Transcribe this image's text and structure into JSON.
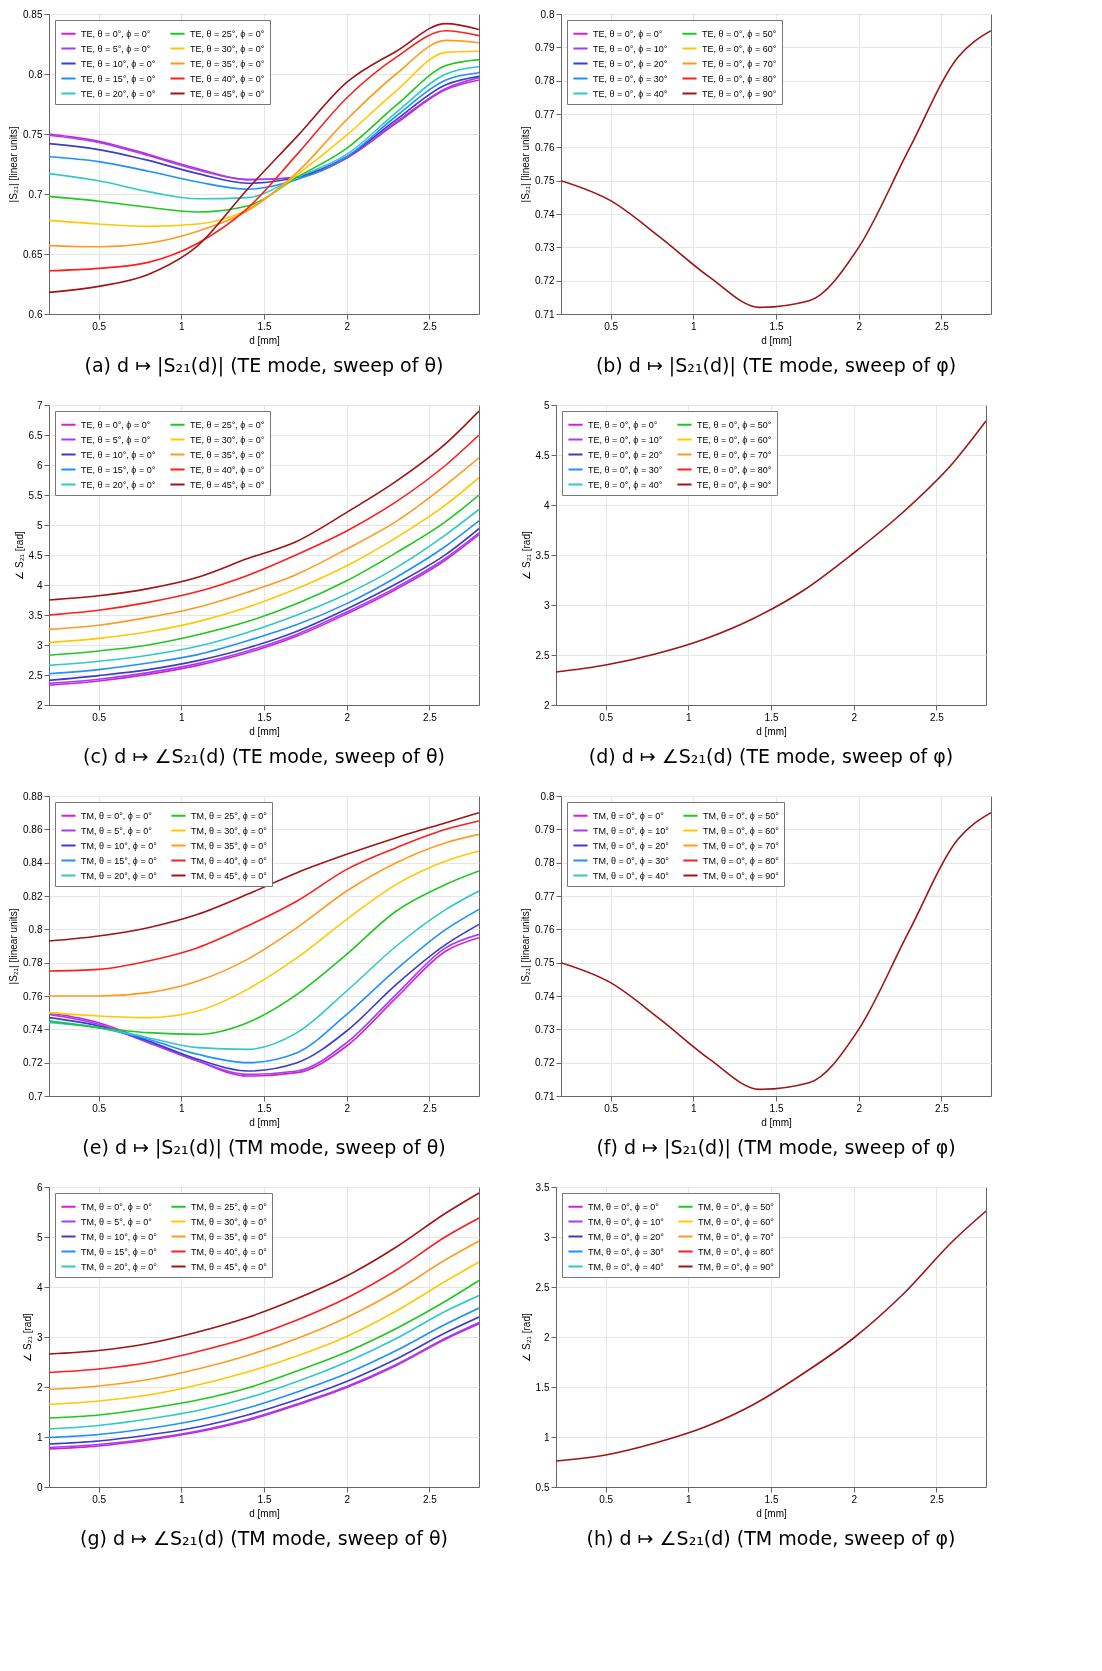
{
  "chart_data": [
    {
      "type": "line",
      "title": "(a) d ↦ |S₂₁(d)| (TE mode, sweep of θ)",
      "xlabel": "d [mm]",
      "ylabel": "|S₂₁| [linear units]",
      "x": [
        0.2,
        0.5,
        0.8,
        1.1,
        1.4,
        1.7,
        2.0,
        2.3,
        2.6,
        2.8
      ],
      "xlim": [
        0.2,
        2.8
      ],
      "xticks": [
        0.5,
        1,
        1.5,
        2,
        2.5
      ],
      "ylim": [
        0.6,
        0.85
      ],
      "yticks": [
        0.6,
        0.65,
        0.7,
        0.75,
        0.8,
        0.85
      ],
      "grid": true,
      "legend": "top left",
      "line_style": "solid",
      "series": [
        {
          "name": "TE, θ = 0°, ϕ = 0°",
          "color": "#d61ed6",
          "values": [
            0.75,
            0.744,
            0.733,
            0.721,
            0.712,
            0.714,
            0.73,
            0.759,
            0.787,
            0.795
          ]
        },
        {
          "name": "TE, θ = 5°, ϕ = 0°",
          "color": "#a040f0",
          "values": [
            0.749,
            0.743,
            0.732,
            0.72,
            0.712,
            0.714,
            0.73,
            0.76,
            0.788,
            0.797
          ]
        },
        {
          "name": "TE, θ = 10°, ϕ = 0°",
          "color": "#3c3cc8",
          "values": [
            0.742,
            0.737,
            0.728,
            0.717,
            0.709,
            0.714,
            0.731,
            0.762,
            0.791,
            0.798
          ]
        },
        {
          "name": "TE, θ = 15°, ϕ = 0°",
          "color": "#1e90ff",
          "values": [
            0.731,
            0.727,
            0.719,
            0.71,
            0.704,
            0.712,
            0.731,
            0.765,
            0.795,
            0.801
          ]
        },
        {
          "name": "TE, θ = 20°, ϕ = 0°",
          "color": "#30c8c8",
          "values": [
            0.717,
            0.711,
            0.702,
            0.696,
            0.697,
            0.714,
            0.733,
            0.768,
            0.8,
            0.806
          ]
        },
        {
          "name": "TE, θ = 25°, ϕ = 0°",
          "color": "#1ec81e",
          "values": [
            0.698,
            0.694,
            0.689,
            0.685,
            0.69,
            0.714,
            0.738,
            0.774,
            0.807,
            0.812
          ]
        },
        {
          "name": "TE, θ = 30°, ϕ = 0°",
          "color": "#ffc800",
          "values": [
            0.678,
            0.675,
            0.673,
            0.675,
            0.687,
            0.716,
            0.749,
            0.786,
            0.818,
            0.819
          ]
        },
        {
          "name": "TE, θ = 35°, ϕ = 0°",
          "color": "#ff9b1e",
          "values": [
            0.657,
            0.656,
            0.659,
            0.669,
            0.686,
            0.718,
            0.762,
            0.8,
            0.828,
            0.826
          ]
        },
        {
          "name": "TE, θ = 40°, ϕ = 0°",
          "color": "#ff1e1e",
          "values": [
            0.636,
            0.638,
            0.643,
            0.659,
            0.688,
            0.733,
            0.78,
            0.814,
            0.836,
            0.832
          ]
        },
        {
          "name": "TE, θ = 45°, ϕ = 0°",
          "color": "#a01414",
          "values": [
            0.618,
            0.623,
            0.633,
            0.657,
            0.704,
            0.748,
            0.793,
            0.819,
            0.842,
            0.837
          ]
        }
      ]
    },
    {
      "type": "line",
      "title": "(b) d ↦ |S₂₁(d)| (TE mode, sweep of φ)",
      "xlabel": "d [mm]",
      "ylabel": "|S₂₁| [linear units]",
      "x": [
        0.2,
        0.5,
        0.8,
        1.1,
        1.4,
        1.7,
        2.0,
        2.3,
        2.6,
        2.8
      ],
      "xlim": [
        0.2,
        2.8
      ],
      "xticks": [
        0.5,
        1,
        1.5,
        2,
        2.5
      ],
      "ylim": [
        0.71,
        0.8
      ],
      "yticks": [
        0.71,
        0.72,
        0.73,
        0.74,
        0.75,
        0.76,
        0.77,
        0.78,
        0.79,
        0.8
      ],
      "grid": true,
      "legend": "top left",
      "line_style": "solid",
      "series": [
        {
          "name": "TE, θ = 0°, ϕ = 0°",
          "color": "#d61ed6",
          "values": [
            null,
            null,
            null,
            null,
            null,
            null,
            null,
            null,
            null,
            null
          ]
        },
        {
          "name": "TE, θ = 0°, ϕ = 10°",
          "color": "#a040f0",
          "values": [
            null,
            null,
            null,
            null,
            null,
            null,
            null,
            null,
            null,
            null
          ]
        },
        {
          "name": "TE, θ = 0°, ϕ = 20°",
          "color": "#3c3cc8",
          "values": [
            null,
            null,
            null,
            null,
            null,
            null,
            null,
            null,
            null,
            null
          ]
        },
        {
          "name": "TE, θ = 0°, ϕ = 30°",
          "color": "#1e90ff",
          "values": [
            null,
            null,
            null,
            null,
            null,
            null,
            null,
            null,
            null,
            null
          ]
        },
        {
          "name": "TE, θ = 0°, ϕ = 40°",
          "color": "#30c8c8",
          "values": [
            null,
            null,
            null,
            null,
            null,
            null,
            null,
            null,
            null,
            null
          ]
        },
        {
          "name": "TE, θ = 0°, ϕ = 50°",
          "color": "#1ec81e",
          "values": [
            null,
            null,
            null,
            null,
            null,
            null,
            null,
            null,
            null,
            null
          ]
        },
        {
          "name": "TE, θ = 0°, ϕ = 60°",
          "color": "#ffc800",
          "values": [
            null,
            null,
            null,
            null,
            null,
            null,
            null,
            null,
            null,
            null
          ]
        },
        {
          "name": "TE, θ = 0°, ϕ = 70°",
          "color": "#ff9b1e",
          "values": [
            null,
            null,
            null,
            null,
            null,
            null,
            null,
            null,
            null,
            null
          ]
        },
        {
          "name": "TE, θ = 0°, ϕ = 80°",
          "color": "#ff1e1e",
          "values": [
            null,
            null,
            null,
            null,
            null,
            null,
            null,
            null,
            null,
            null
          ]
        },
        {
          "name": "TE, θ = 0°, ϕ = 90°",
          "color": "#a01414",
          "values": [
            0.75,
            0.744,
            0.733,
            0.721,
            0.712,
            0.714,
            0.73,
            0.759,
            0.787,
            0.795
          ]
        }
      ]
    },
    {
      "type": "line",
      "title": "(c) d ↦ ∠S₂₁(d) (TE mode, sweep of θ)",
      "xlabel": "d [mm]",
      "ylabel": "∠ S₂₁ [rad]",
      "x": [
        0.2,
        0.5,
        0.8,
        1.1,
        1.4,
        1.7,
        2.0,
        2.3,
        2.6,
        2.8
      ],
      "xlim": [
        0.2,
        2.8
      ],
      "xticks": [
        0.5,
        1,
        1.5,
        2,
        2.5
      ],
      "ylim": [
        2,
        7
      ],
      "yticks": [
        2,
        2.5,
        3,
        3.5,
        4,
        4.5,
        5,
        5.5,
        6,
        6.5,
        7
      ],
      "grid": true,
      "legend": "top left",
      "line_style": "solid",
      "series": [
        {
          "name": "TE, θ = 0°, ϕ = 0°",
          "color": "#d61ed6",
          "values": [
            2.33,
            2.4,
            2.51,
            2.66,
            2.87,
            3.15,
            3.52,
            3.93,
            4.42,
            4.84
          ]
        },
        {
          "name": "TE, θ = 5°, ϕ = 0°",
          "color": "#a040f0",
          "values": [
            2.36,
            2.43,
            2.54,
            2.69,
            2.9,
            3.18,
            3.55,
            3.96,
            4.45,
            4.87
          ]
        },
        {
          "name": "TE, θ = 10°, ϕ = 0°",
          "color": "#3c3cc8",
          "values": [
            2.41,
            2.49,
            2.59,
            2.74,
            2.95,
            3.23,
            3.6,
            4.02,
            4.51,
            4.94
          ]
        },
        {
          "name": "TE, θ = 15°, ϕ = 0°",
          "color": "#1e90ff",
          "values": [
            2.52,
            2.59,
            2.7,
            2.84,
            3.07,
            3.34,
            3.69,
            4.13,
            4.65,
            5.07
          ]
        },
        {
          "name": "TE, θ = 20°, ϕ = 0°",
          "color": "#30c8c8",
          "values": [
            2.66,
            2.73,
            2.83,
            2.98,
            3.21,
            3.5,
            3.85,
            4.29,
            4.84,
            5.26
          ]
        },
        {
          "name": "TE, θ = 25°, ϕ = 0°",
          "color": "#1ec81e",
          "values": [
            2.83,
            2.9,
            3.0,
            3.17,
            3.39,
            3.69,
            4.07,
            4.54,
            5.06,
            5.5
          ]
        },
        {
          "name": "TE, θ = 30°, ϕ = 0°",
          "color": "#ffc800",
          "values": [
            3.04,
            3.11,
            3.22,
            3.39,
            3.63,
            3.94,
            4.32,
            4.79,
            5.34,
            5.79
          ]
        },
        {
          "name": "TE, θ = 35°, ϕ = 0°",
          "color": "#ff9b1e",
          "values": [
            3.26,
            3.33,
            3.46,
            3.63,
            3.88,
            4.18,
            4.6,
            5.06,
            5.67,
            6.12
          ]
        },
        {
          "name": "TE, θ = 40°, ϕ = 0°",
          "color": "#ff1e1e",
          "values": [
            3.5,
            3.58,
            3.71,
            3.89,
            4.16,
            4.51,
            4.9,
            5.39,
            6.0,
            6.5
          ]
        },
        {
          "name": "TE, θ = 45°, ϕ = 0°",
          "color": "#a01414",
          "values": [
            3.75,
            3.82,
            3.94,
            4.13,
            4.44,
            4.73,
            5.21,
            5.73,
            6.36,
            6.9
          ]
        }
      ]
    },
    {
      "type": "line",
      "title": "(d) d ↦ ∠S₂₁(d) (TE mode, sweep of φ)",
      "xlabel": "d [mm]",
      "ylabel": "∠ S₂₁ [rad]",
      "x": [
        0.2,
        0.5,
        0.8,
        1.1,
        1.4,
        1.7,
        2.0,
        2.3,
        2.6,
        2.8
      ],
      "xlim": [
        0.2,
        2.8
      ],
      "xticks": [
        0.5,
        1,
        1.5,
        2,
        2.5
      ],
      "ylim": [
        2,
        5
      ],
      "yticks": [
        2,
        2.5,
        3,
        3.5,
        4,
        4.5,
        5
      ],
      "grid": true,
      "legend": "top left",
      "line_style": "solid",
      "series": [
        {
          "name": "TE, θ = 0°, ϕ = 0°",
          "color": "#d61ed6",
          "values": [
            null,
            null,
            null,
            null,
            null,
            null,
            null,
            null,
            null,
            null
          ]
        },
        {
          "name": "TE, θ = 0°, ϕ = 10°",
          "color": "#a040f0",
          "values": [
            null,
            null,
            null,
            null,
            null,
            null,
            null,
            null,
            null,
            null
          ]
        },
        {
          "name": "TE, θ = 0°, ϕ = 20°",
          "color": "#3c3cc8",
          "values": [
            null,
            null,
            null,
            null,
            null,
            null,
            null,
            null,
            null,
            null
          ]
        },
        {
          "name": "TE, θ = 0°, ϕ = 30°",
          "color": "#1e90ff",
          "values": [
            null,
            null,
            null,
            null,
            null,
            null,
            null,
            null,
            null,
            null
          ]
        },
        {
          "name": "TE, θ = 0°, ϕ = 40°",
          "color": "#30c8c8",
          "values": [
            null,
            null,
            null,
            null,
            null,
            null,
            null,
            null,
            null,
            null
          ]
        },
        {
          "name": "TE, θ = 0°, ϕ = 50°",
          "color": "#1ec81e",
          "values": [
            null,
            null,
            null,
            null,
            null,
            null,
            null,
            null,
            null,
            null
          ]
        },
        {
          "name": "TE, θ = 0°, ϕ = 60°",
          "color": "#ffc800",
          "values": [
            null,
            null,
            null,
            null,
            null,
            null,
            null,
            null,
            null,
            null
          ]
        },
        {
          "name": "TE, θ = 0°, ϕ = 70°",
          "color": "#ff9b1e",
          "values": [
            null,
            null,
            null,
            null,
            null,
            null,
            null,
            null,
            null,
            null
          ]
        },
        {
          "name": "TE, θ = 0°, ϕ = 80°",
          "color": "#ff1e1e",
          "values": [
            null,
            null,
            null,
            null,
            null,
            null,
            null,
            null,
            null,
            null
          ]
        },
        {
          "name": "TE, θ = 0°, ϕ = 90°",
          "color": "#a01414",
          "values": [
            2.33,
            2.4,
            2.51,
            2.66,
            2.87,
            3.15,
            3.52,
            3.93,
            4.42,
            4.84
          ]
        }
      ]
    },
    {
      "type": "line",
      "title": "(e) d ↦ |S₂₁(d)| (TM mode, sweep of θ)",
      "xlabel": "d [mm]",
      "ylabel": "|S₂₁| [linear units]",
      "x": [
        0.2,
        0.5,
        0.8,
        1.1,
        1.4,
        1.7,
        2.0,
        2.3,
        2.6,
        2.8
      ],
      "xlim": [
        0.2,
        2.8
      ],
      "xticks": [
        0.5,
        1,
        1.5,
        2,
        2.5
      ],
      "ylim": [
        0.7,
        0.88
      ],
      "yticks": [
        0.7,
        0.72,
        0.74,
        0.76,
        0.78,
        0.8,
        0.82,
        0.84,
        0.86,
        0.88
      ],
      "grid": true,
      "legend": "top left",
      "line_style": "solid",
      "series": [
        {
          "name": "TM, θ = 0°, ϕ = 0°",
          "color": "#d61ed6",
          "values": [
            0.75,
            0.744,
            0.733,
            0.721,
            0.712,
            0.714,
            0.73,
            0.759,
            0.787,
            0.795
          ]
        },
        {
          "name": "TM, θ = 5°, ϕ = 0°",
          "color": "#a040f0",
          "values": [
            0.749,
            0.743,
            0.732,
            0.721,
            0.713,
            0.715,
            0.732,
            0.761,
            0.789,
            0.797
          ]
        },
        {
          "name": "TM, θ = 10°, ϕ = 0°",
          "color": "#3c3cc8",
          "values": [
            0.747,
            0.742,
            0.733,
            0.722,
            0.715,
            0.72,
            0.739,
            0.767,
            0.791,
            0.803
          ]
        },
        {
          "name": "TM, θ = 15°, ϕ = 0°",
          "color": "#1e90ff",
          "values": [
            0.745,
            0.741,
            0.734,
            0.725,
            0.72,
            0.726,
            0.749,
            0.776,
            0.8,
            0.812
          ]
        },
        {
          "name": "TM, θ = 20°, ϕ = 0°",
          "color": "#30c8c8",
          "values": [
            0.744,
            0.741,
            0.735,
            0.729,
            0.728,
            0.738,
            0.763,
            0.79,
            0.812,
            0.823
          ]
        },
        {
          "name": "TM, θ = 25°, ϕ = 0°",
          "color": "#1ec81e",
          "values": [
            0.745,
            0.741,
            0.738,
            0.737,
            0.744,
            0.761,
            0.785,
            0.811,
            0.827,
            0.835
          ]
        },
        {
          "name": "TM, θ = 30°, ϕ = 0°",
          "color": "#ffc800",
          "values": [
            0.75,
            0.748,
            0.747,
            0.751,
            0.764,
            0.783,
            0.806,
            0.827,
            0.841,
            0.847
          ]
        },
        {
          "name": "TM, θ = 35°, ϕ = 0°",
          "color": "#ff9b1e",
          "values": [
            0.76,
            0.76,
            0.762,
            0.769,
            0.782,
            0.801,
            0.823,
            0.84,
            0.852,
            0.857
          ]
        },
        {
          "name": "TM, θ = 40°, ϕ = 0°",
          "color": "#ff1e1e",
          "values": [
            0.775,
            0.776,
            0.781,
            0.789,
            0.802,
            0.817,
            0.836,
            0.849,
            0.86,
            0.865
          ]
        },
        {
          "name": "TM, θ = 45°, ϕ = 0°",
          "color": "#a01414",
          "values": [
            0.793,
            0.796,
            0.801,
            0.809,
            0.821,
            0.834,
            0.845,
            0.855,
            0.864,
            0.87
          ]
        }
      ]
    },
    {
      "type": "line",
      "title": "(f) d ↦ |S₂₁(d)| (TM mode, sweep of φ)",
      "xlabel": "d [mm]",
      "ylabel": "|S₂₁| [linear units]",
      "x": [
        0.2,
        0.5,
        0.8,
        1.1,
        1.4,
        1.7,
        2.0,
        2.3,
        2.6,
        2.8
      ],
      "xlim": [
        0.2,
        2.8
      ],
      "xticks": [
        0.5,
        1,
        1.5,
        2,
        2.5
      ],
      "ylim": [
        0.71,
        0.8
      ],
      "yticks": [
        0.71,
        0.72,
        0.73,
        0.74,
        0.75,
        0.76,
        0.77,
        0.78,
        0.79,
        0.8
      ],
      "grid": true,
      "legend": "top left",
      "line_style": "solid",
      "series": [
        {
          "name": "TM, θ = 0°, ϕ = 0°",
          "color": "#d61ed6",
          "values": [
            null,
            null,
            null,
            null,
            null,
            null,
            null,
            null,
            null,
            null
          ]
        },
        {
          "name": "TM, θ = 0°, ϕ = 10°",
          "color": "#a040f0",
          "values": [
            null,
            null,
            null,
            null,
            null,
            null,
            null,
            null,
            null,
            null
          ]
        },
        {
          "name": "TM, θ = 0°, ϕ = 20°",
          "color": "#3c3cc8",
          "values": [
            null,
            null,
            null,
            null,
            null,
            null,
            null,
            null,
            null,
            null
          ]
        },
        {
          "name": "TM, θ = 0°, ϕ = 30°",
          "color": "#1e90ff",
          "values": [
            null,
            null,
            null,
            null,
            null,
            null,
            null,
            null,
            null,
            null
          ]
        },
        {
          "name": "TM, θ = 0°, ϕ = 40°",
          "color": "#30c8c8",
          "values": [
            null,
            null,
            null,
            null,
            null,
            null,
            null,
            null,
            null,
            null
          ]
        },
        {
          "name": "TM, θ = 0°, ϕ = 50°",
          "color": "#1ec81e",
          "values": [
            null,
            null,
            null,
            null,
            null,
            null,
            null,
            null,
            null,
            null
          ]
        },
        {
          "name": "TM, θ = 0°, ϕ = 60°",
          "color": "#ffc800",
          "values": [
            null,
            null,
            null,
            null,
            null,
            null,
            null,
            null,
            null,
            null
          ]
        },
        {
          "name": "TM, θ = 0°, ϕ = 70°",
          "color": "#ff9b1e",
          "values": [
            null,
            null,
            null,
            null,
            null,
            null,
            null,
            null,
            null,
            null
          ]
        },
        {
          "name": "TM, θ = 0°, ϕ = 80°",
          "color": "#ff1e1e",
          "values": [
            null,
            null,
            null,
            null,
            null,
            null,
            null,
            null,
            null,
            null
          ]
        },
        {
          "name": "TM, θ = 0°, ϕ = 90°",
          "color": "#a01414",
          "values": [
            0.75,
            0.744,
            0.733,
            0.721,
            0.712,
            0.714,
            0.73,
            0.759,
            0.787,
            0.795
          ]
        }
      ]
    },
    {
      "type": "line",
      "title": "(g) d ↦ ∠S₂₁(d) (TM mode, sweep of θ)",
      "xlabel": "d [mm]",
      "ylabel": "∠ S₂₁ [rad]",
      "x": [
        0.2,
        0.5,
        0.8,
        1.1,
        1.4,
        1.7,
        2.0,
        2.3,
        2.6,
        2.8
      ],
      "xlim": [
        0.2,
        2.8
      ],
      "xticks": [
        0.5,
        1,
        1.5,
        2,
        2.5
      ],
      "ylim": [
        0,
        6
      ],
      "yticks": [
        0,
        1,
        2,
        3,
        4,
        5,
        6
      ],
      "grid": true,
      "legend": "top left",
      "line_style": "solid",
      "series": [
        {
          "name": "TM, θ = 0°, ϕ = 0°",
          "color": "#d61ed6",
          "values": [
            0.76,
            0.82,
            0.94,
            1.1,
            1.33,
            1.64,
            1.99,
            2.43,
            2.96,
            3.26
          ]
        },
        {
          "name": "TM, θ = 5°, ϕ = 0°",
          "color": "#a040f0",
          "values": [
            0.79,
            0.85,
            0.96,
            1.12,
            1.35,
            1.66,
            2.01,
            2.45,
            2.98,
            3.29
          ]
        },
        {
          "name": "TM, θ = 10°, ϕ = 0°",
          "color": "#3c3cc8",
          "values": [
            0.86,
            0.92,
            1.04,
            1.2,
            1.44,
            1.75,
            2.11,
            2.56,
            3.09,
            3.4
          ]
        },
        {
          "name": "TM, θ = 15°, ϕ = 0°",
          "color": "#1e90ff",
          "values": [
            0.99,
            1.05,
            1.17,
            1.34,
            1.58,
            1.9,
            2.27,
            2.73,
            3.26,
            3.58
          ]
        },
        {
          "name": "TM, θ = 20°, ϕ = 0°",
          "color": "#30c8c8",
          "values": [
            1.16,
            1.23,
            1.36,
            1.53,
            1.78,
            2.11,
            2.5,
            2.97,
            3.52,
            3.83
          ]
        },
        {
          "name": "TM, θ = 25°, ϕ = 0°",
          "color": "#1ec81e",
          "values": [
            1.38,
            1.44,
            1.57,
            1.74,
            1.98,
            2.32,
            2.7,
            3.17,
            3.72,
            4.13
          ]
        },
        {
          "name": "TM, θ = 30°, ϕ = 0°",
          "color": "#ffc800",
          "values": [
            1.65,
            1.72,
            1.84,
            2.04,
            2.3,
            2.62,
            3.01,
            3.52,
            4.12,
            4.5
          ]
        },
        {
          "name": "TM, θ = 35°, ϕ = 0°",
          "color": "#ff9b1e",
          "values": [
            1.95,
            2.02,
            2.15,
            2.36,
            2.63,
            2.97,
            3.39,
            3.92,
            4.55,
            4.92
          ]
        },
        {
          "name": "TM, θ = 40°, ϕ = 0°",
          "color": "#ff1e1e",
          "values": [
            2.29,
            2.36,
            2.49,
            2.71,
            2.98,
            3.34,
            3.78,
            4.34,
            5.01,
            5.38
          ]
        },
        {
          "name": "TM, θ = 45°, ϕ = 0°",
          "color": "#a01414",
          "values": [
            2.66,
            2.73,
            2.87,
            3.1,
            3.39,
            3.77,
            4.22,
            4.8,
            5.48,
            5.88
          ]
        }
      ]
    },
    {
      "type": "line",
      "title": "(h) d ↦ ∠S₂₁(d) (TM mode, sweep of φ)",
      "xlabel": "d [mm]",
      "ylabel": "∠ S₂₁ [rad]",
      "x": [
        0.2,
        0.5,
        0.8,
        1.1,
        1.4,
        1.7,
        2.0,
        2.3,
        2.6,
        2.8
      ],
      "xlim": [
        0.2,
        2.8
      ],
      "xticks": [
        0.5,
        1,
        1.5,
        2,
        2.5
      ],
      "ylim": [
        0.5,
        3.5
      ],
      "yticks": [
        0.5,
        1,
        1.5,
        2,
        2.5,
        3,
        3.5
      ],
      "grid": true,
      "legend": "top left",
      "line_style": "solid",
      "series": [
        {
          "name": "TM, θ = 0°, ϕ = 0°",
          "color": "#d61ed6",
          "values": [
            null,
            null,
            null,
            null,
            null,
            null,
            null,
            null,
            null,
            null
          ]
        },
        {
          "name": "TM, θ = 0°, ϕ = 10°",
          "color": "#a040f0",
          "values": [
            null,
            null,
            null,
            null,
            null,
            null,
            null,
            null,
            null,
            null
          ]
        },
        {
          "name": "TM, θ = 0°, ϕ = 20°",
          "color": "#3c3cc8",
          "values": [
            null,
            null,
            null,
            null,
            null,
            null,
            null,
            null,
            null,
            null
          ]
        },
        {
          "name": "TM, θ = 0°, ϕ = 30°",
          "color": "#1e90ff",
          "values": [
            null,
            null,
            null,
            null,
            null,
            null,
            null,
            null,
            null,
            null
          ]
        },
        {
          "name": "TM, θ = 0°, ϕ = 40°",
          "color": "#30c8c8",
          "values": [
            null,
            null,
            null,
            null,
            null,
            null,
            null,
            null,
            null,
            null
          ]
        },
        {
          "name": "TM, θ = 0°, ϕ = 50°",
          "color": "#1ec81e",
          "values": [
            null,
            null,
            null,
            null,
            null,
            null,
            null,
            null,
            null,
            null
          ]
        },
        {
          "name": "TM, θ = 0°, ϕ = 60°",
          "color": "#ffc800",
          "values": [
            null,
            null,
            null,
            null,
            null,
            null,
            null,
            null,
            null,
            null
          ]
        },
        {
          "name": "TM, θ = 0°, ϕ = 70°",
          "color": "#ff9b1e",
          "values": [
            null,
            null,
            null,
            null,
            null,
            null,
            null,
            null,
            null,
            null
          ]
        },
        {
          "name": "TM, θ = 0°, ϕ = 80°",
          "color": "#ff1e1e",
          "values": [
            null,
            null,
            null,
            null,
            null,
            null,
            null,
            null,
            null,
            null
          ]
        },
        {
          "name": "TM, θ = 0°, ϕ = 90°",
          "color": "#a01414",
          "values": [
            0.76,
            0.82,
            0.94,
            1.1,
            1.33,
            1.64,
            1.99,
            2.43,
            2.96,
            3.26
          ]
        }
      ]
    }
  ]
}
